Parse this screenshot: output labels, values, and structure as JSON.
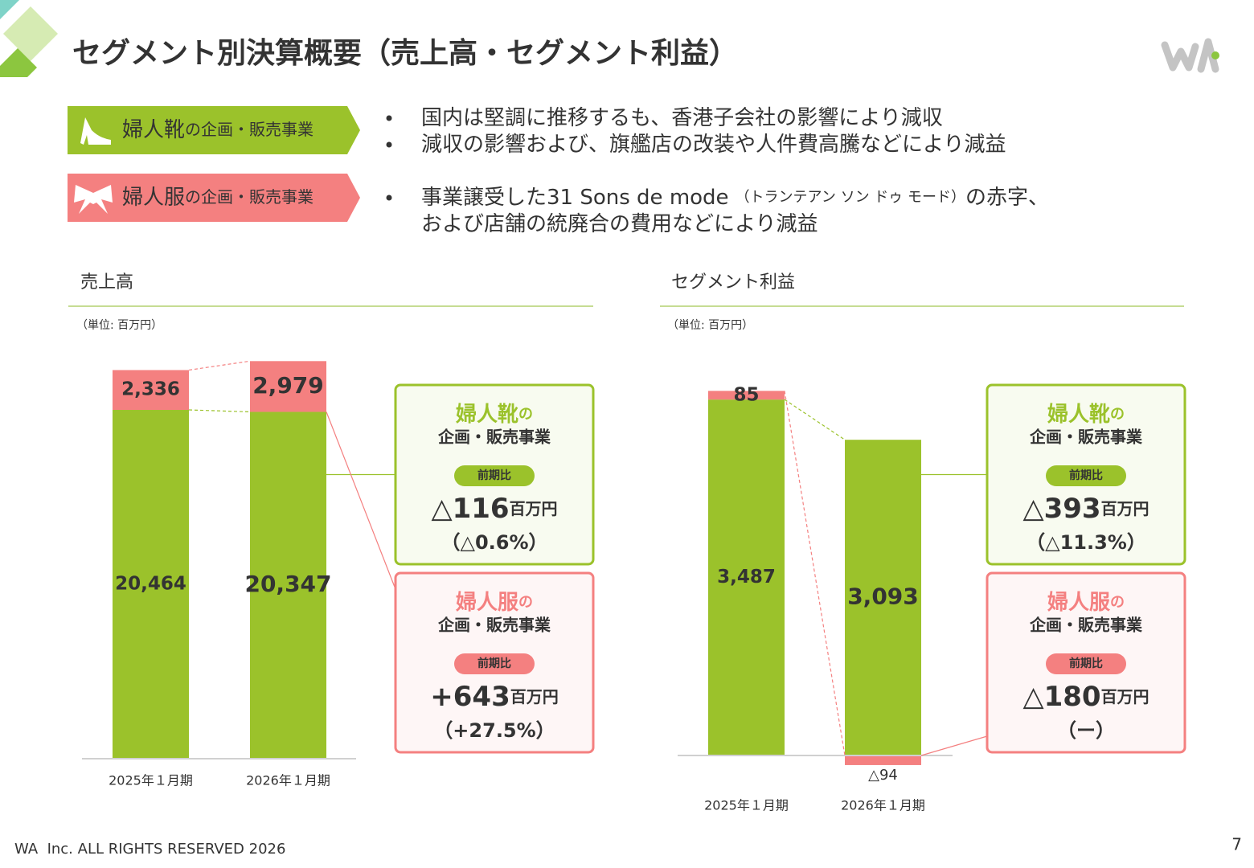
{
  "header": {
    "title": "セグメント別決算概要（売上高・セグメント利益）"
  },
  "segments": [
    {
      "name": "婦人靴",
      "suffix": "の企画・販売事業",
      "color": "#9bc22b",
      "bullets": [
        {
          "lines": [
            [
              "国内は堅調に推移するも、香港子会社の影響により減収"
            ]
          ]
        },
        {
          "lines": [
            [
              "減収の影響および、旗艦店の改装や人件費高騰などにより減益"
            ]
          ]
        }
      ]
    },
    {
      "name": "婦人服",
      "suffix": "の企画・販売事業",
      "color": "#f48080",
      "bullets": [
        {
          "lines": [
            [
              "事業譲受した31 Sons de mode",
              "（トランテアン ソン ドゥ モード）",
              "の赤字、"
            ],
            [
              "および店舗の統廃合の費用などにより減益"
            ]
          ]
        }
      ]
    }
  ],
  "chart_data": [
    {
      "type": "stacked_bar",
      "title": "売上高",
      "unit_note": "（単位: 百万円）",
      "categories": [
        "2025年１月期",
        "2026年１月期"
      ],
      "ylim": [
        0,
        24000
      ],
      "series": [
        {
          "name": "婦人靴",
          "color": "#9bc22b",
          "values": [
            20464,
            20347
          ],
          "value_labels": [
            "20,464",
            "20,347"
          ],
          "callout": {
            "particle": "の",
            "business": "企画・販売事業",
            "badge": "前期比",
            "change": "△116",
            "unit": "百万円",
            "change_pct": "（△0.6%）"
          }
        },
        {
          "name": "婦人服",
          "color": "#f48080",
          "values": [
            2336,
            2979
          ],
          "value_labels": [
            "2,336",
            "2,979"
          ],
          "callout": {
            "particle": "の",
            "business": "企画・販売事業",
            "badge": "前期比",
            "change": "+643",
            "unit": "百万円",
            "change_pct": "（+27.5%）"
          }
        }
      ]
    },
    {
      "type": "stacked_bar",
      "title": "セグメント利益",
      "unit_note": "（単位: 百万円）",
      "categories": [
        "2025年１月期",
        "2026年１月期"
      ],
      "ylim": [
        -200,
        3800
      ],
      "series": [
        {
          "name": "婦人靴",
          "color": "#9bc22b",
          "values": [
            3487,
            3093
          ],
          "value_labels": [
            "3,487",
            "3,093"
          ],
          "callout": {
            "particle": "の",
            "business": "企画・販売事業",
            "badge": "前期比",
            "change": "△393",
            "unit": "百万円",
            "change_pct": "（△11.3%）"
          }
        },
        {
          "name": "婦人服",
          "color": "#f48080",
          "values": [
            85,
            -94
          ],
          "value_labels": [
            "85",
            "△94"
          ],
          "callout": {
            "particle": "の",
            "business": "企画・販売事業",
            "badge": "前期比",
            "change": "△180",
            "unit": "百万円",
            "change_pct": "（ー）"
          }
        }
      ]
    }
  ],
  "footer": {
    "copyright": "WA  Inc. ALL RIGHTS RESERVED 2026",
    "page": "7"
  }
}
